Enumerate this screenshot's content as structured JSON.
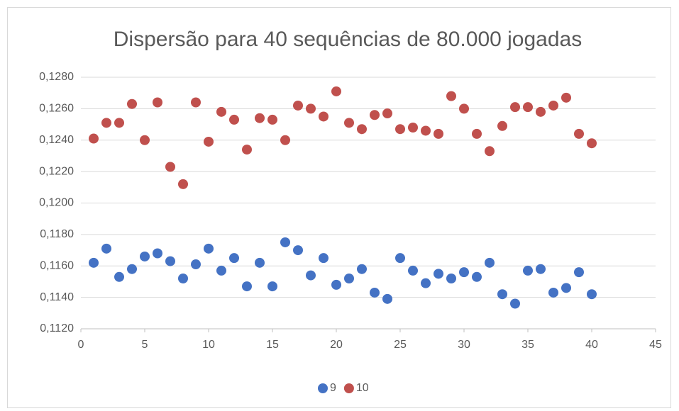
{
  "chart_data": {
    "type": "scatter",
    "title": "Dispersão para 40 sequências de 80.000 jogadas",
    "x": [
      1,
      2,
      3,
      4,
      5,
      6,
      7,
      8,
      9,
      10,
      11,
      12,
      13,
      14,
      15,
      16,
      17,
      18,
      19,
      20,
      21,
      22,
      23,
      24,
      25,
      26,
      27,
      28,
      29,
      30,
      31,
      32,
      33,
      34,
      35,
      36,
      37,
      38,
      39,
      40
    ],
    "series": [
      {
        "name": "9",
        "color": "#4472c4",
        "values": [
          0.1162,
          0.1171,
          0.1153,
          0.1158,
          0.1166,
          0.1168,
          0.1163,
          0.1152,
          0.1161,
          0.1171,
          0.1157,
          0.1165,
          0.1147,
          0.1162,
          0.1147,
          0.1175,
          0.117,
          0.1154,
          0.1165,
          0.1148,
          0.1152,
          0.1158,
          0.1143,
          0.1139,
          0.1165,
          0.1157,
          0.1149,
          0.1155,
          0.1152,
          0.1156,
          0.1153,
          0.1162,
          0.1142,
          0.1136,
          0.1157,
          0.1158,
          0.1143,
          0.1146,
          0.1156,
          0.1142
        ]
      },
      {
        "name": "10",
        "color": "#c0504d",
        "values": [
          0.1241,
          0.1251,
          0.1251,
          0.1263,
          0.124,
          0.1264,
          0.1223,
          0.1212,
          0.1264,
          0.1239,
          0.1258,
          0.1253,
          0.1234,
          0.1254,
          0.1253,
          0.124,
          0.1262,
          0.126,
          0.1255,
          0.1271,
          0.1251,
          0.1247,
          0.1256,
          0.1257,
          0.1247,
          0.1248,
          0.1246,
          0.1244,
          0.1268,
          0.126,
          0.1244,
          0.1233,
          0.1249,
          0.1261,
          0.1261,
          0.1258,
          0.1262,
          0.1267,
          0.1244,
          0.1238
        ]
      }
    ],
    "xlim": [
      0,
      45
    ],
    "xticks": [
      0,
      5,
      10,
      15,
      20,
      25,
      30,
      35,
      40,
      45
    ],
    "ylim": [
      0.112,
      0.128
    ],
    "yticks": [
      {
        "value": 0.112,
        "label": "0,1120"
      },
      {
        "value": 0.114,
        "label": "0,1140"
      },
      {
        "value": 0.116,
        "label": "0,1160"
      },
      {
        "value": 0.118,
        "label": "0,1180"
      },
      {
        "value": 0.12,
        "label": "0,1200"
      },
      {
        "value": 0.122,
        "label": "0,1220"
      },
      {
        "value": 0.124,
        "label": "0,1240"
      },
      {
        "value": 0.126,
        "label": "0,1260"
      },
      {
        "value": 0.128,
        "label": "0,1280"
      }
    ],
    "grid": true,
    "legend": "bottom"
  }
}
